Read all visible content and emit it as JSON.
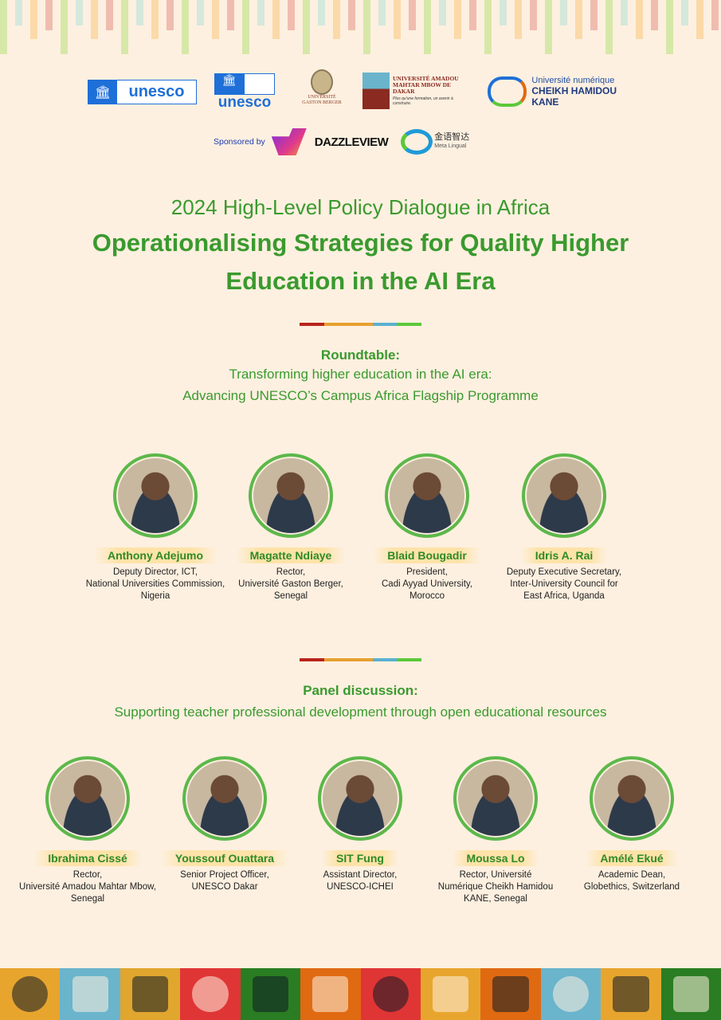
{
  "logos": {
    "unesco1": "unesco",
    "unesco2": "unesco",
    "ugb": "UNIVERSITÉ GASTON BERGER",
    "ucad": "UNIVERSITÉ AMADOU MAHTAR MBOW DE DAKAR",
    "ucad_tagline": "Plus qu'une formation, un avenir à construire.",
    "uncheikh_top": "Université numérique",
    "uncheikh_bottom": "CHEIKH HAMIDOU KANE"
  },
  "sponsors": {
    "label": "Sponsored by",
    "dazzleview": "DAZZLEVIEW",
    "metalingual_cn": "金语智达",
    "metalingual_en": "Meta Lingual"
  },
  "header": {
    "kicker": "2024 High-Level Policy Dialogue in Africa",
    "title_line1": "Operationalising Strategies for Quality Higher",
    "title_line2": "Education in the AI Era"
  },
  "roundtable": {
    "heading": "Roundtable:",
    "line1": "Transforming higher education in the AI era:",
    "line2": "Advancing UNESCO’s Campus Africa Flagship Programme",
    "people": [
      {
        "name": "Anthony Adejumo",
        "r1": "Deputy Director, ICT,",
        "r2": "National Universities Commission,",
        "r3": "Nigeria"
      },
      {
        "name": "Magatte Ndiaye",
        "r1": "Rector,",
        "r2": "Université Gaston Berger,",
        "r3": "Senegal"
      },
      {
        "name": "Blaid Bougadir",
        "r1": "President,",
        "r2": "Cadi Ayyad University,",
        "r3": "Morocco"
      },
      {
        "name": "Idris A. Rai",
        "r1": "Deputy Executive Secretary,",
        "r2": "Inter-University Council for",
        "r3": "East Africa, Uganda"
      }
    ]
  },
  "panel": {
    "heading": "Panel discussion:",
    "line1": "Supporting teacher professional development through open educational resources",
    "people": [
      {
        "name": "Ibrahima Cissé",
        "r1": "Rector,",
        "r2": "Université Amadou Mahtar Mbow,",
        "r3": "Senegal"
      },
      {
        "name": "Youssouf Ouattara",
        "r1": "Senior Project Officer,",
        "r2": "UNESCO Dakar",
        "r3": ""
      },
      {
        "name": "SIT Fung",
        "r1": "Assistant Director,",
        "r2": "UNESCO-ICHEI",
        "r3": ""
      },
      {
        "name": "Moussa Lo",
        "r1": "Rector, Université",
        "r2": "Numérique Cheikh Hamidou",
        "r3": "KANE, Senegal"
      },
      {
        "name": "Amélé Ekué",
        "r1": "Academic Dean,",
        "r2": "Globethics, Switzerland",
        "r3": ""
      }
    ]
  },
  "colors": {
    "green": "#3a9a2e",
    "background": "#fdf0e0",
    "divider": [
      "#b8231c",
      "#e8a030",
      "#e8a030",
      "#5ab0d0",
      "#5cc83a"
    ],
    "band": [
      "#e8a52e",
      "#6ab4cc",
      "#e0a62e",
      "#e03535",
      "#2a7d22",
      "#e06a12",
      "#e03535",
      "#e8a52e",
      "#e06a12",
      "#6ab4cc",
      "#e8a52e",
      "#2a7d22"
    ]
  }
}
